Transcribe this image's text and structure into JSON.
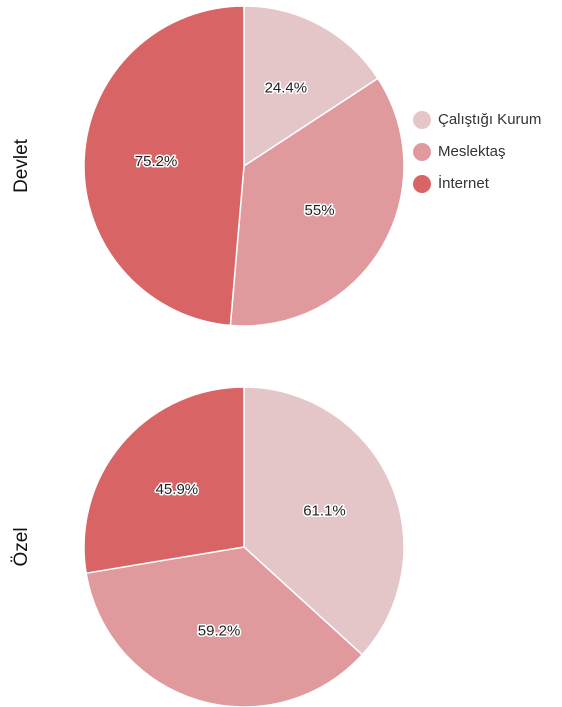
{
  "chart_data": [
    {
      "type": "pie",
      "title": "Devlet",
      "categories": [
        "Çalıştığı Kurum",
        "Meslektaş",
        "İnternet"
      ],
      "colors": [
        "#e5c6c8",
        "#e09a9d",
        "#d86466"
      ],
      "values": [
        24.4,
        55,
        75.2
      ],
      "value_labels": [
        "24.4%",
        "55%",
        "75.2%"
      ],
      "legend": "right"
    },
    {
      "type": "pie",
      "title": "Özel",
      "colors": [
        "#e5c6c8",
        "#e09a9d",
        "#d86466"
      ],
      "values": [
        61.1,
        59.2,
        45.9
      ],
      "value_labels": [
        "61.1%",
        "59.2%",
        "45.9%"
      ]
    }
  ]
}
